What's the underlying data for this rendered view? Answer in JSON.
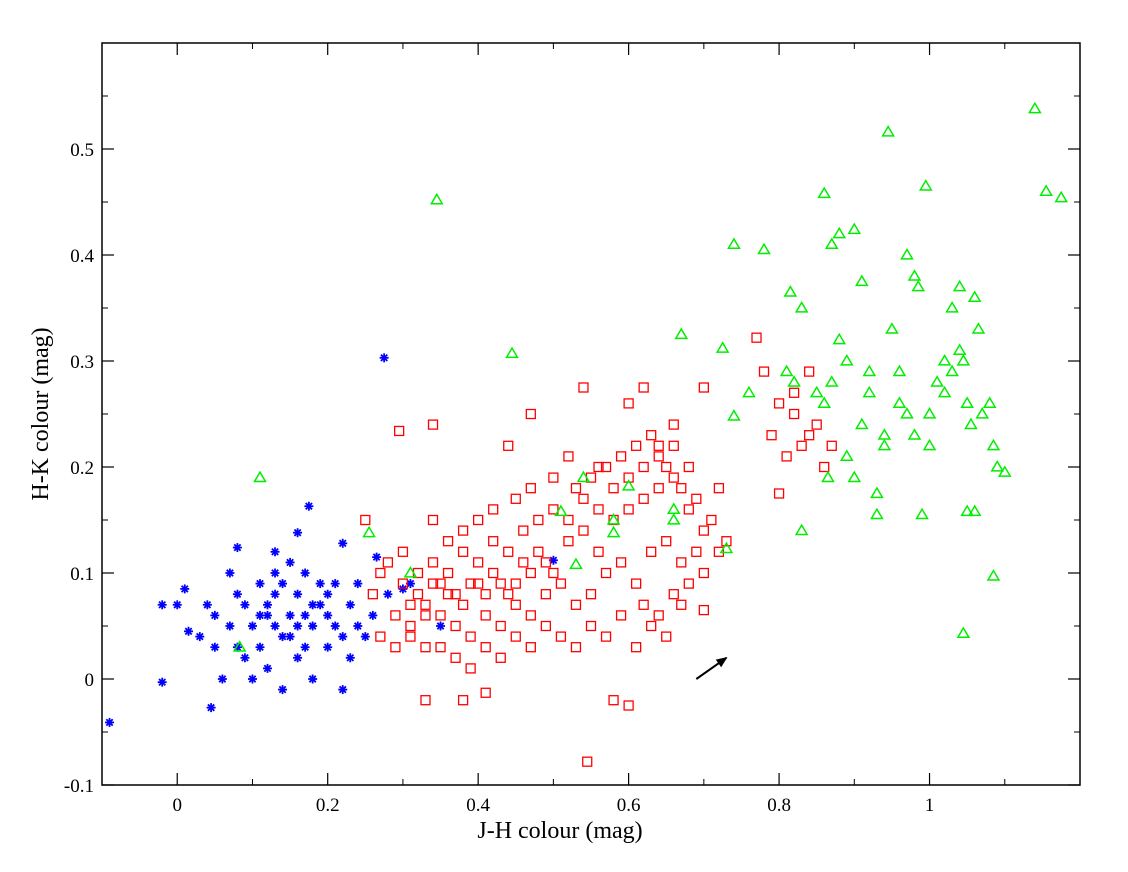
{
  "chart_data": {
    "type": "scatter",
    "title": "",
    "xlabel": "J-H colour (mag)",
    "ylabel": "H-K colour (mag)",
    "xlim": [
      -0.1,
      1.2
    ],
    "ylim": [
      -0.1,
      0.6
    ],
    "xticks": [
      0,
      0.2,
      0.4,
      0.6,
      0.8,
      1
    ],
    "xtick_labels": [
      "0",
      "0.2",
      "0.4",
      "0.6",
      "0.8",
      "1"
    ],
    "yticks": [
      -0.1,
      0,
      0.1,
      0.2,
      0.3,
      0.4,
      0.5
    ],
    "ytick_labels": [
      "-0.1",
      "0",
      "0.1",
      "0.2",
      "0.3",
      "0.4",
      "0.5"
    ],
    "grid": false,
    "legend": "none",
    "arrow": {
      "from": [
        0.69,
        0.0
      ],
      "to": [
        0.73,
        0.02
      ],
      "color": "#000000"
    },
    "series": [
      {
        "marker": "asterisk",
        "color": "#0000ff",
        "points": [
          [
            -0.09,
            -0.041
          ],
          [
            -0.02,
            -0.003
          ],
          [
            0.045,
            -0.027
          ],
          [
            0.275,
            0.303
          ],
          [
            0.175,
            0.163
          ],
          [
            0.08,
            0.124
          ],
          [
            0.13,
            0.12
          ],
          [
            0.16,
            0.138
          ],
          [
            0.22,
            0.128
          ],
          [
            0.265,
            0.115
          ],
          [
            -0.02,
            0.07
          ],
          [
            0.0,
            0.07
          ],
          [
            0.01,
            0.085
          ],
          [
            0.015,
            0.045
          ],
          [
            0.03,
            0.04
          ],
          [
            0.05,
            0.06
          ],
          [
            0.07,
            0.1
          ],
          [
            0.1,
            0.05
          ],
          [
            0.12,
            0.07
          ],
          [
            0.14,
            0.04
          ],
          [
            0.15,
            0.06
          ],
          [
            0.16,
            0.08
          ],
          [
            0.17,
            0.03
          ],
          [
            0.18,
            0.05
          ],
          [
            0.19,
            0.07
          ],
          [
            0.2,
            0.06
          ],
          [
            0.21,
            0.09
          ],
          [
            0.22,
            0.04
          ],
          [
            0.23,
            0.07
          ],
          [
            0.24,
            0.05
          ],
          [
            0.11,
            0.09
          ],
          [
            0.13,
            0.1
          ],
          [
            0.09,
            0.02
          ],
          [
            0.06,
            0.0
          ],
          [
            0.08,
            0.03
          ],
          [
            0.1,
            0.0
          ],
          [
            0.12,
            0.01
          ],
          [
            0.14,
            -0.01
          ],
          [
            0.16,
            0.02
          ],
          [
            0.18,
            0.0
          ],
          [
            0.2,
            0.03
          ],
          [
            0.22,
            -0.01
          ],
          [
            0.14,
            0.09
          ],
          [
            0.15,
            0.11
          ],
          [
            0.17,
            0.1
          ],
          [
            0.19,
            0.09
          ],
          [
            0.21,
            0.05
          ],
          [
            0.13,
            0.05
          ],
          [
            0.11,
            0.03
          ],
          [
            0.09,
            0.07
          ],
          [
            0.07,
            0.05
          ],
          [
            0.05,
            0.03
          ],
          [
            0.04,
            0.07
          ],
          [
            0.08,
            0.08
          ],
          [
            0.12,
            0.06
          ],
          [
            0.16,
            0.05
          ],
          [
            0.18,
            0.07
          ],
          [
            0.2,
            0.08
          ],
          [
            0.24,
            0.09
          ],
          [
            0.26,
            0.06
          ],
          [
            0.25,
            0.04
          ],
          [
            0.23,
            0.02
          ],
          [
            0.17,
            0.06
          ],
          [
            0.15,
            0.04
          ],
          [
            0.13,
            0.08
          ],
          [
            0.11,
            0.06
          ],
          [
            0.3,
            0.085
          ],
          [
            0.35,
            0.05
          ],
          [
            0.5,
            0.112
          ],
          [
            0.28,
            0.08
          ],
          [
            0.31,
            0.09
          ]
        ]
      },
      {
        "marker": "square",
        "color": "#ff0000",
        "points": [
          [
            0.545,
            -0.078
          ],
          [
            0.295,
            0.234
          ],
          [
            0.34,
            0.24
          ],
          [
            0.77,
            0.322
          ],
          [
            0.7,
            0.275
          ],
          [
            0.62,
            0.275
          ],
          [
            0.54,
            0.275
          ],
          [
            0.6,
            0.26
          ],
          [
            0.47,
            0.25
          ],
          [
            0.66,
            0.24
          ],
          [
            0.44,
            0.22
          ],
          [
            0.52,
            0.21
          ],
          [
            0.56,
            0.2
          ],
          [
            0.64,
            0.22
          ],
          [
            0.68,
            0.2
          ],
          [
            0.72,
            0.18
          ],
          [
            0.73,
            0.13
          ],
          [
            0.7,
            0.065
          ],
          [
            0.58,
            -0.02
          ],
          [
            0.6,
            -0.025
          ],
          [
            0.38,
            -0.02
          ],
          [
            0.41,
            -0.013
          ],
          [
            0.33,
            -0.02
          ],
          [
            0.8,
            0.175
          ],
          [
            0.78,
            0.29
          ],
          [
            0.8,
            0.26
          ],
          [
            0.82,
            0.25
          ],
          [
            0.84,
            0.23
          ],
          [
            0.86,
            0.2
          ],
          [
            0.83,
            0.22
          ],
          [
            0.85,
            0.24
          ],
          [
            0.81,
            0.21
          ],
          [
            0.79,
            0.23
          ],
          [
            0.87,
            0.22
          ],
          [
            0.82,
            0.27
          ],
          [
            0.84,
            0.29
          ],
          [
            0.25,
            0.15
          ],
          [
            0.28,
            0.11
          ],
          [
            0.3,
            0.12
          ],
          [
            0.32,
            0.1
          ],
          [
            0.34,
            0.09
          ],
          [
            0.36,
            0.08
          ],
          [
            0.38,
            0.07
          ],
          [
            0.4,
            0.09
          ],
          [
            0.42,
            0.1
          ],
          [
            0.44,
            0.08
          ],
          [
            0.46,
            0.11
          ],
          [
            0.48,
            0.12
          ],
          [
            0.5,
            0.1
          ],
          [
            0.52,
            0.13
          ],
          [
            0.54,
            0.14
          ],
          [
            0.56,
            0.12
          ],
          [
            0.58,
            0.15
          ],
          [
            0.6,
            0.16
          ],
          [
            0.62,
            0.17
          ],
          [
            0.64,
            0.18
          ],
          [
            0.66,
            0.19
          ],
          [
            0.68,
            0.16
          ],
          [
            0.7,
            0.14
          ],
          [
            0.26,
            0.08
          ],
          [
            0.29,
            0.06
          ],
          [
            0.31,
            0.05
          ],
          [
            0.33,
            0.07
          ],
          [
            0.35,
            0.06
          ],
          [
            0.37,
            0.05
          ],
          [
            0.39,
            0.04
          ],
          [
            0.41,
            0.06
          ],
          [
            0.43,
            0.05
          ],
          [
            0.45,
            0.07
          ],
          [
            0.47,
            0.06
          ],
          [
            0.49,
            0.08
          ],
          [
            0.51,
            0.09
          ],
          [
            0.53,
            0.07
          ],
          [
            0.55,
            0.08
          ],
          [
            0.57,
            0.1
          ],
          [
            0.59,
            0.11
          ],
          [
            0.61,
            0.09
          ],
          [
            0.63,
            0.12
          ],
          [
            0.65,
            0.13
          ],
          [
            0.67,
            0.11
          ],
          [
            0.69,
            0.12
          ],
          [
            0.27,
            0.1
          ],
          [
            0.3,
            0.09
          ],
          [
            0.32,
            0.08
          ],
          [
            0.34,
            0.11
          ],
          [
            0.36,
            0.1
          ],
          [
            0.38,
            0.12
          ],
          [
            0.4,
            0.11
          ],
          [
            0.42,
            0.13
          ],
          [
            0.44,
            0.12
          ],
          [
            0.46,
            0.14
          ],
          [
            0.48,
            0.15
          ],
          [
            0.5,
            0.16
          ],
          [
            0.52,
            0.15
          ],
          [
            0.54,
            0.17
          ],
          [
            0.56,
            0.16
          ],
          [
            0.58,
            0.18
          ],
          [
            0.6,
            0.19
          ],
          [
            0.62,
            0.2
          ],
          [
            0.64,
            0.21
          ],
          [
            0.66,
            0.22
          ],
          [
            0.35,
            0.03
          ],
          [
            0.37,
            0.02
          ],
          [
            0.39,
            0.01
          ],
          [
            0.41,
            0.03
          ],
          [
            0.43,
            0.02
          ],
          [
            0.45,
            0.04
          ],
          [
            0.47,
            0.03
          ],
          [
            0.49,
            0.05
          ],
          [
            0.51,
            0.04
          ],
          [
            0.53,
            0.03
          ],
          [
            0.55,
            0.05
          ],
          [
            0.57,
            0.04
          ],
          [
            0.59,
            0.06
          ],
          [
            0.61,
            0.03
          ],
          [
            0.63,
            0.05
          ],
          [
            0.65,
            0.04
          ],
          [
            0.67,
            0.07
          ],
          [
            0.4,
            0.15
          ],
          [
            0.42,
            0.16
          ],
          [
            0.38,
            0.14
          ],
          [
            0.36,
            0.13
          ],
          [
            0.34,
            0.15
          ],
          [
            0.45,
            0.17
          ],
          [
            0.47,
            0.18
          ],
          [
            0.5,
            0.19
          ],
          [
            0.53,
            0.18
          ],
          [
            0.55,
            0.19
          ],
          [
            0.57,
            0.2
          ],
          [
            0.59,
            0.21
          ],
          [
            0.61,
            0.22
          ],
          [
            0.63,
            0.23
          ],
          [
            0.65,
            0.2
          ],
          [
            0.67,
            0.18
          ],
          [
            0.69,
            0.17
          ],
          [
            0.71,
            0.15
          ],
          [
            0.72,
            0.12
          ],
          [
            0.7,
            0.1
          ],
          [
            0.68,
            0.09
          ],
          [
            0.66,
            0.08
          ],
          [
            0.64,
            0.06
          ],
          [
            0.62,
            0.07
          ],
          [
            0.27,
            0.04
          ],
          [
            0.29,
            0.03
          ],
          [
            0.31,
            0.04
          ],
          [
            0.33,
            0.03
          ],
          [
            0.45,
            0.09
          ],
          [
            0.47,
            0.1
          ],
          [
            0.49,
            0.11
          ],
          [
            0.43,
            0.09
          ],
          [
            0.41,
            0.08
          ],
          [
            0.39,
            0.09
          ],
          [
            0.37,
            0.08
          ],
          [
            0.35,
            0.09
          ],
          [
            0.33,
            0.06
          ],
          [
            0.31,
            0.07
          ]
        ]
      },
      {
        "marker": "triangle",
        "color": "#00ee00",
        "points": [
          [
            0.345,
            0.452
          ],
          [
            0.445,
            0.307
          ],
          [
            0.11,
            0.19
          ],
          [
            0.083,
            0.03
          ],
          [
            0.255,
            0.138
          ],
          [
            0.31,
            0.1
          ],
          [
            0.51,
            0.158
          ],
          [
            0.53,
            0.108
          ],
          [
            0.54,
            0.19
          ],
          [
            0.58,
            0.15
          ],
          [
            0.58,
            0.138
          ],
          [
            0.6,
            0.182
          ],
          [
            0.66,
            0.16
          ],
          [
            0.66,
            0.15
          ],
          [
            0.67,
            0.325
          ],
          [
            0.73,
            0.123
          ],
          [
            0.725,
            0.312
          ],
          [
            0.74,
            0.41
          ],
          [
            0.74,
            0.248
          ],
          [
            0.76,
            0.27
          ],
          [
            0.78,
            0.405
          ],
          [
            0.815,
            0.365
          ],
          [
            0.83,
            0.14
          ],
          [
            0.83,
            0.35
          ],
          [
            0.86,
            0.458
          ],
          [
            0.865,
            0.19
          ],
          [
            0.87,
            0.41
          ],
          [
            0.88,
            0.42
          ],
          [
            0.88,
            0.32
          ],
          [
            0.89,
            0.3
          ],
          [
            0.9,
            0.424
          ],
          [
            0.91,
            0.375
          ],
          [
            0.945,
            0.516
          ],
          [
            0.92,
            0.29
          ],
          [
            0.94,
            0.23
          ],
          [
            0.95,
            0.33
          ],
          [
            0.93,
            0.175
          ],
          [
            0.93,
            0.155
          ],
          [
            0.96,
            0.29
          ],
          [
            0.97,
            0.4
          ],
          [
            0.98,
            0.38
          ],
          [
            0.985,
            0.37
          ],
          [
            0.99,
            0.155
          ],
          [
            0.995,
            0.465
          ],
          [
            1.0,
            0.25
          ],
          [
            1.01,
            0.28
          ],
          [
            1.02,
            0.3
          ],
          [
            1.03,
            0.35
          ],
          [
            1.04,
            0.37
          ],
          [
            1.04,
            0.31
          ],
          [
            1.045,
            0.3
          ],
          [
            1.05,
            0.26
          ],
          [
            1.055,
            0.24
          ],
          [
            1.06,
            0.36
          ],
          [
            1.065,
            0.33
          ],
          [
            1.07,
            0.25
          ],
          [
            1.08,
            0.26
          ],
          [
            1.085,
            0.22
          ],
          [
            1.09,
            0.2
          ],
          [
            1.1,
            0.195
          ],
          [
            1.045,
            0.043
          ],
          [
            1.085,
            0.097
          ],
          [
            1.05,
            0.158
          ],
          [
            1.06,
            0.158
          ],
          [
            1.14,
            0.538
          ],
          [
            1.155,
            0.46
          ],
          [
            1.175,
            0.454
          ],
          [
            0.81,
            0.29
          ],
          [
            0.82,
            0.28
          ],
          [
            0.85,
            0.27
          ],
          [
            0.86,
            0.26
          ],
          [
            0.87,
            0.28
          ],
          [
            0.89,
            0.21
          ],
          [
            0.9,
            0.19
          ],
          [
            0.91,
            0.24
          ],
          [
            0.92,
            0.27
          ],
          [
            0.94,
            0.22
          ],
          [
            0.96,
            0.26
          ],
          [
            0.97,
            0.25
          ],
          [
            0.98,
            0.23
          ],
          [
            1.0,
            0.22
          ],
          [
            1.02,
            0.27
          ],
          [
            1.03,
            0.29
          ]
        ]
      }
    ]
  }
}
